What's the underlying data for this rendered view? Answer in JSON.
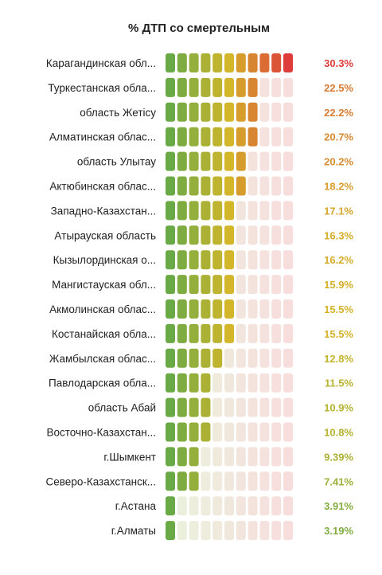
{
  "chart_data": {
    "type": "bar",
    "title": "% ДТП со смертельным",
    "categories": [
      "Карагандинская обл...",
      "Туркестанская обла...",
      "область Жетісу",
      "Алматинская облас...",
      "область Улытау",
      "Актюбинская облас...",
      "Западно-Казахстан...",
      "Атырауская область",
      "Кызылординская о...",
      "Мангистауская обл...",
      "Акмолинская облас...",
      "Костанайская обла...",
      "Жамбылская облас...",
      "Павлодарская обла...",
      "область Абай",
      "Восточно-Казахстан...",
      "г.Шымкент",
      "Северо-Казахстанск...",
      "г.Астана",
      "г.Алматы"
    ],
    "values": [
      30.3,
      22.5,
      22.2,
      20.7,
      20.2,
      18.2,
      17.1,
      16.3,
      16.2,
      15.9,
      15.5,
      15.5,
      12.8,
      11.5,
      10.9,
      10.8,
      9.39,
      7.41,
      3.91,
      3.19
    ],
    "value_labels": [
      "30.3%",
      "22.5%",
      "22.2%",
      "20.7%",
      "20.2%",
      "18.2%",
      "17.1%",
      "16.3%",
      "16.2%",
      "15.9%",
      "15.5%",
      "15.5%",
      "12.8%",
      "11.5%",
      "10.9%",
      "10.8%",
      "9.39%",
      "7.41%",
      "3.91%",
      "3.19%"
    ],
    "xlim": [
      0,
      30.3
    ],
    "cells_per_row": 11,
    "legend": "none",
    "grid": false,
    "colors": {
      "low": "#6aaa46",
      "mid": "#d4b62a",
      "high": "#de3b3b",
      "empty_low": "#eaf2dc",
      "empty_high": "#f8dddd"
    }
  }
}
